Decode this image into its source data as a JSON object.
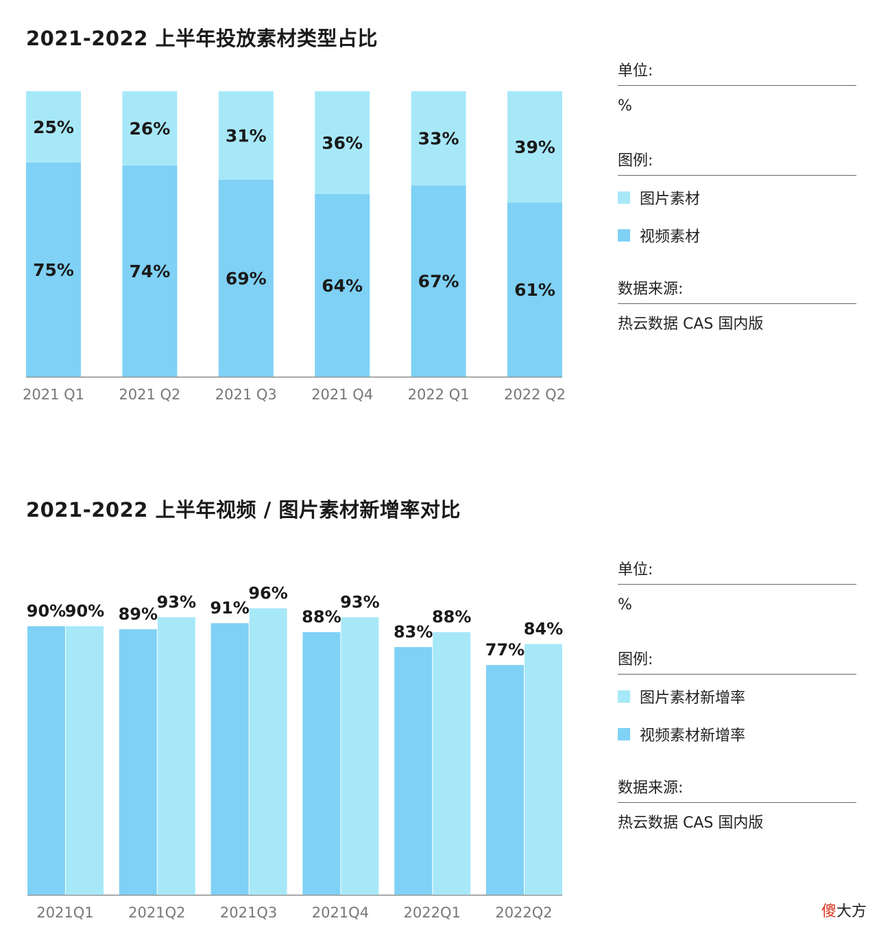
{
  "charts": {
    "top": {
      "title": "2021-2022 上半年投放素材类型占比",
      "side": {
        "unit_label": "单位:",
        "unit_value": "%",
        "legend_label": "图例:",
        "source_label": "数据来源:",
        "source_value": "热云数据 CAS 国内版"
      }
    },
    "bottom": {
      "title": "2021-2022 上半年视频 / 图片素材新增率对比",
      "side": {
        "unit_label": "单位:",
        "unit_value": "%",
        "legend_label": "图例:",
        "source_label": "数据来源:",
        "source_value": "热云数据 CAS 国内版"
      }
    }
  },
  "colors": {
    "image_material": "#a7e8f8",
    "video_material": "#7fd1f5",
    "axis": "#8a8a8a",
    "tick_text": "#777777"
  },
  "chart_data": [
    {
      "type": "bar",
      "stacked": true,
      "title": "2021-2022 上半年投放素材类型占比",
      "categories": [
        "2021 Q1",
        "2021 Q2",
        "2021 Q3",
        "2021 Q4",
        "2022 Q1",
        "2022 Q2"
      ],
      "series": [
        {
          "name": "视频素材",
          "values": [
            75,
            74,
            69,
            64,
            67,
            61
          ],
          "labels": [
            "75%",
            "74%",
            "69%",
            "64%",
            "67%",
            "61%"
          ]
        },
        {
          "name": "图片素材",
          "values": [
            25,
            26,
            31,
            36,
            33,
            39
          ],
          "labels": [
            "25%",
            "26%",
            "31%",
            "36%",
            "33%",
            "39%"
          ]
        }
      ],
      "legend": [
        "图片素材",
        "视频素材"
      ],
      "unit": "%",
      "ylim": [
        0,
        100
      ],
      "grid": false,
      "legend_position": "right"
    },
    {
      "type": "bar",
      "stacked": false,
      "title": "2021-2022 上半年视频 / 图片素材新增率对比",
      "categories": [
        "2021Q1",
        "2021Q2",
        "2021Q3",
        "2021Q4",
        "2022Q1",
        "2022Q2"
      ],
      "series": [
        {
          "name": "视频素材新增率",
          "values": [
            90,
            89,
            91,
            88,
            83,
            77
          ],
          "labels": [
            "90%",
            "89%",
            "91%",
            "88%",
            "83%",
            "77%"
          ]
        },
        {
          "name": "图片素材新增率",
          "values": [
            90,
            93,
            96,
            93,
            88,
            84
          ],
          "labels": [
            "90%",
            "93%",
            "96%",
            "93%",
            "88%",
            "84%"
          ]
        }
      ],
      "legend": [
        "图片素材新增率",
        "视频素材新增率"
      ],
      "unit": "%",
      "ylim": [
        0,
        100
      ],
      "grid": false,
      "legend_position": "right"
    }
  ],
  "watermark": {
    "first_char": "傻",
    "rest": "大方"
  }
}
